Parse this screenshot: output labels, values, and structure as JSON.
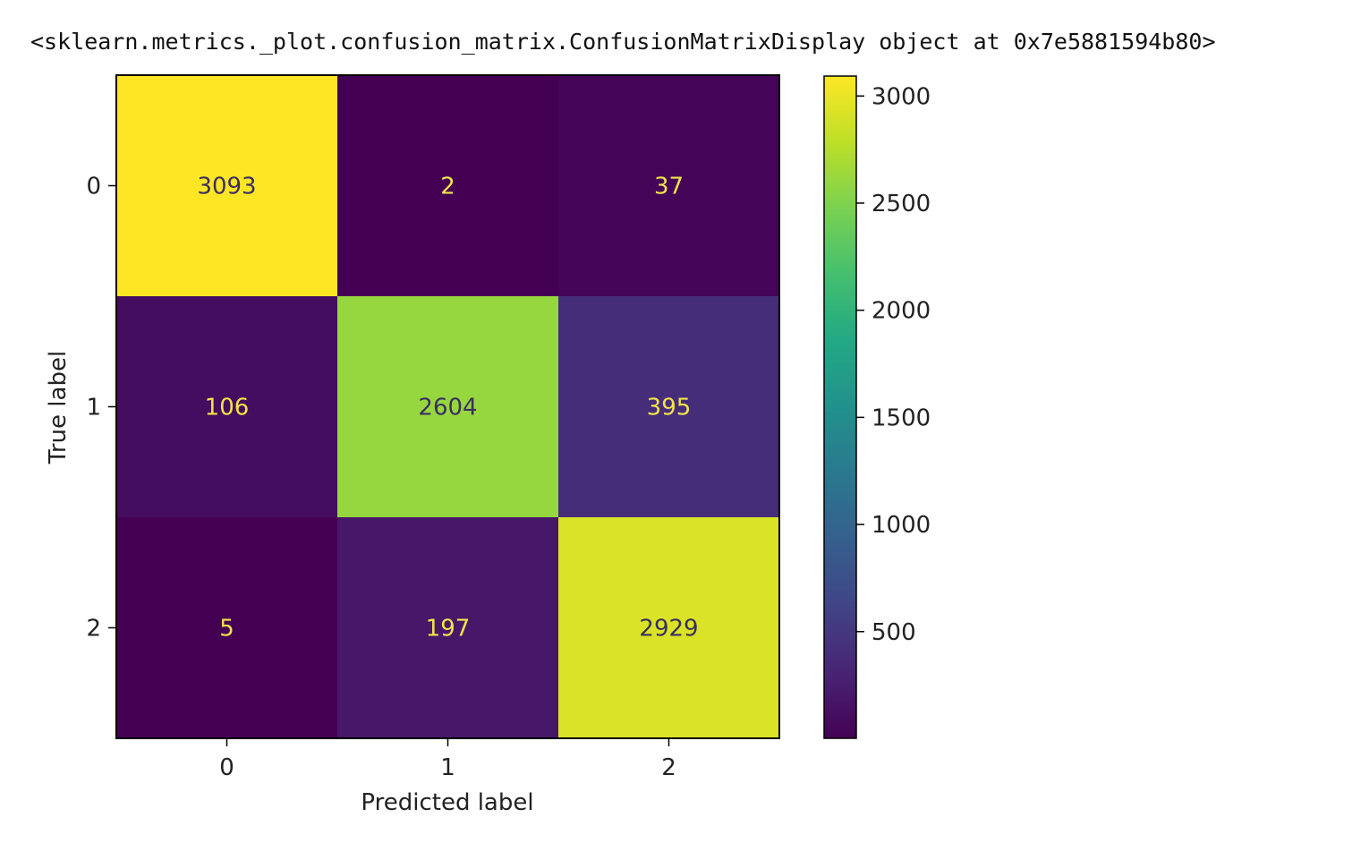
{
  "output": {
    "text": "<sklearn.metrics._plot.confusion_matrix.ConfusionMatrixDisplay object at 0x7e5881594b80>"
  },
  "chart_data": {
    "type": "heatmap",
    "xlabel": "Predicted label",
    "ylabel": "True label",
    "x_categories": [
      "0",
      "1",
      "2"
    ],
    "y_categories": [
      "0",
      "1",
      "2"
    ],
    "matrix": [
      [
        3093,
        2,
        37
      ],
      [
        106,
        2604,
        395
      ],
      [
        5,
        197,
        2929
      ]
    ],
    "colormap": "viridis",
    "colorbar": {
      "range": [
        2,
        3093
      ],
      "ticks": [
        500,
        1000,
        1500,
        2000,
        2500,
        3000
      ]
    },
    "text_color_dark": "#3b2f5e",
    "text_color_light": "#f2e34a",
    "grid": false
  }
}
